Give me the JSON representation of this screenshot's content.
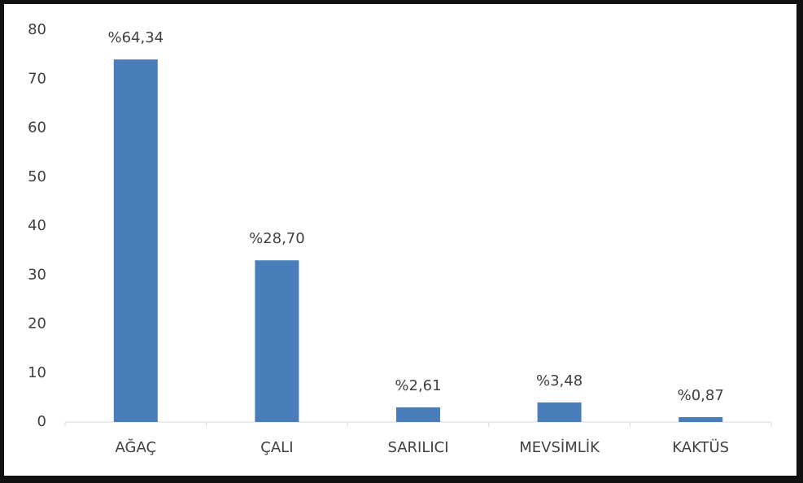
{
  "chart_data": {
    "type": "bar",
    "categories": [
      "AĞAÇ",
      "ÇALI",
      "SARILICI",
      "MEVSİMLİK",
      "KAKTÜS"
    ],
    "values": [
      74,
      33,
      3,
      4,
      1
    ],
    "annotations": [
      "%64,34",
      "%28,70",
      "%2,61",
      "%3,48",
      "%0,87"
    ],
    "color": "#4a7ebb",
    "ylim": [
      0,
      80
    ],
    "yticks": [
      0,
      10,
      20,
      30,
      40,
      50,
      60,
      70,
      80
    ],
    "grid": false
  }
}
